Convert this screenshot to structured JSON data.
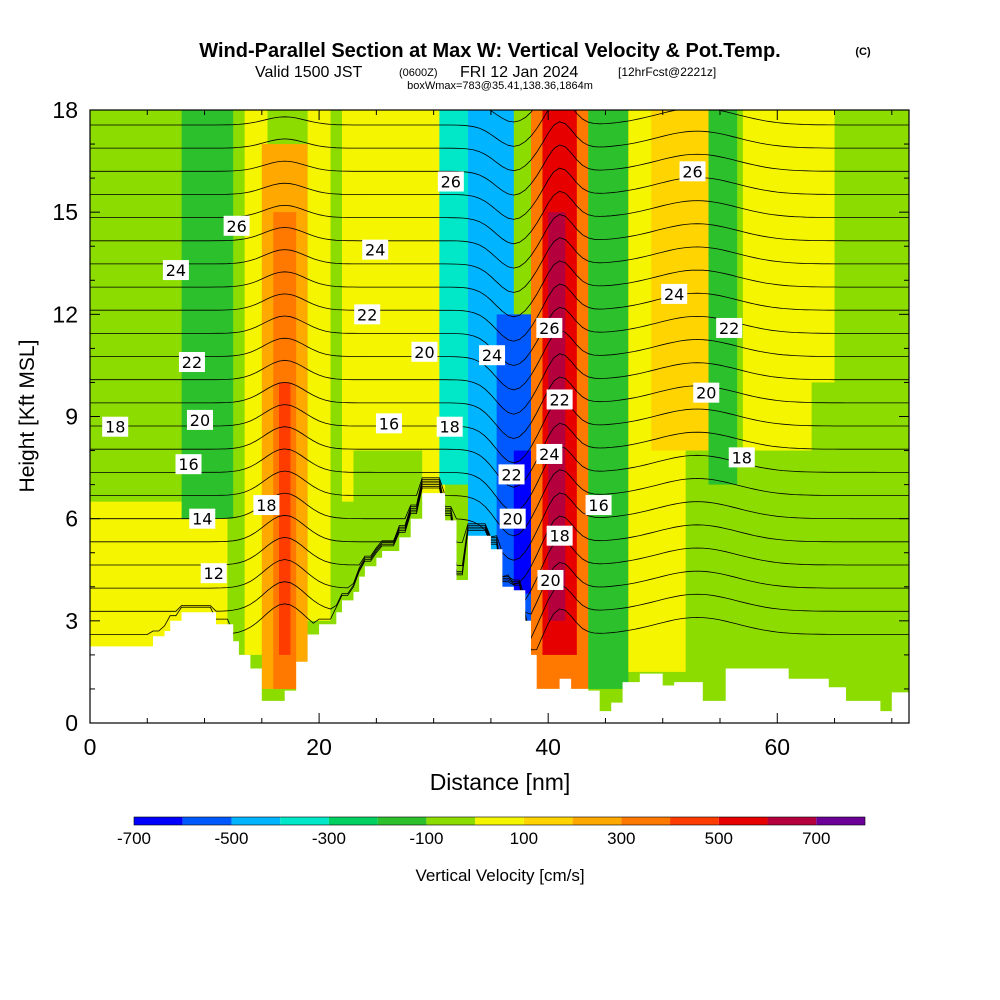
{
  "chart_data": {
    "type": "heatmap",
    "title": "Wind-Parallel Section at Max W: Vertical Velocity & Pot.Temp.",
    "title_mark": "(C)",
    "subtitle": {
      "valid": "Valid 1500 JST",
      "zulu": "(0600Z)",
      "date": "FRI 12 Jan 2024",
      "fcst": "[12hrFcst@2221z]",
      "box": "boxWmax=783@35.41,138.36,1864m"
    },
    "xlabel": "Distance [nm]",
    "ylabel": "Height [Kft MSL]",
    "xlim": [
      0,
      71.5
    ],
    "ylim": [
      0,
      18
    ],
    "x_ticks": [
      {
        "v": 0,
        "label": "0"
      },
      {
        "v": 20,
        "label": "20"
      },
      {
        "v": 40,
        "label": "40"
      },
      {
        "v": 60,
        "label": "60"
      }
    ],
    "y_ticks": [
      {
        "v": 0,
        "label": "0"
      },
      {
        "v": 3,
        "label": "3"
      },
      {
        "v": 6,
        "label": "6"
      },
      {
        "v": 9,
        "label": "9"
      },
      {
        "v": 12,
        "label": "12"
      },
      {
        "v": 15,
        "label": "15"
      },
      {
        "v": 18,
        "label": "18"
      }
    ],
    "terrain": [
      [
        0,
        2.25
      ],
      [
        5.5,
        2.25
      ],
      [
        5.5,
        2.55
      ],
      [
        6.5,
        2.55
      ],
      [
        6.5,
        2.7
      ],
      [
        7,
        2.7
      ],
      [
        7,
        3.0
      ],
      [
        8,
        3.0
      ],
      [
        8,
        3.25
      ],
      [
        11,
        3.25
      ],
      [
        11,
        2.9
      ],
      [
        12.5,
        2.9
      ],
      [
        12.5,
        2.4
      ],
      [
        13,
        2.4
      ],
      [
        13,
        2.0
      ],
      [
        14,
        2.0
      ],
      [
        14,
        1.6
      ],
      [
        15,
        1.6
      ],
      [
        15,
        0.65
      ],
      [
        17,
        0.65
      ],
      [
        17,
        0.95
      ],
      [
        18,
        0.95
      ],
      [
        18,
        1.8
      ],
      [
        19,
        1.8
      ],
      [
        19,
        2.6
      ],
      [
        20,
        2.6
      ],
      [
        20,
        2.9
      ],
      [
        21.5,
        2.9
      ],
      [
        21.5,
        3.25
      ],
      [
        22,
        3.25
      ],
      [
        22,
        3.6
      ],
      [
        23,
        3.6
      ],
      [
        23,
        3.85
      ],
      [
        23.5,
        3.85
      ],
      [
        23.5,
        4.3
      ],
      [
        24,
        4.3
      ],
      [
        24,
        4.6
      ],
      [
        25,
        4.6
      ],
      [
        25,
        4.85
      ],
      [
        25.5,
        4.85
      ],
      [
        25.5,
        5.05
      ],
      [
        27,
        5.05
      ],
      [
        27,
        5.45
      ],
      [
        28,
        5.45
      ],
      [
        28,
        6.0
      ],
      [
        29,
        6.0
      ],
      [
        29,
        6.75
      ],
      [
        31,
        6.75
      ],
      [
        31,
        5.95
      ],
      [
        32,
        5.95
      ],
      [
        32,
        4.2
      ],
      [
        33,
        4.2
      ],
      [
        33,
        5.5
      ],
      [
        35,
        5.5
      ],
      [
        35,
        5.1
      ],
      [
        36,
        5.1
      ],
      [
        36,
        4.0
      ],
      [
        37,
        4.0
      ],
      [
        37,
        3.9
      ],
      [
        38,
        3.9
      ],
      [
        38,
        3.0
      ],
      [
        38.5,
        3.0
      ],
      [
        38.5,
        2.0
      ],
      [
        39,
        2.0
      ],
      [
        39,
        1.0
      ],
      [
        41,
        1.0
      ],
      [
        41,
        1.3
      ],
      [
        42,
        1.3
      ],
      [
        42,
        1.0
      ],
      [
        43.5,
        1.0
      ],
      [
        43.5,
        0.95
      ],
      [
        44.5,
        0.95
      ],
      [
        44.5,
        0.35
      ],
      [
        45.5,
        0.35
      ],
      [
        45.5,
        0.6
      ],
      [
        46.5,
        0.6
      ],
      [
        46.5,
        1.2
      ],
      [
        48,
        1.2
      ],
      [
        48,
        1.45
      ],
      [
        50,
        1.45
      ],
      [
        50,
        1.1
      ],
      [
        51,
        1.1
      ],
      [
        51,
        1.2
      ],
      [
        53.5,
        1.2
      ],
      [
        53.5,
        0.65
      ],
      [
        55.5,
        0.65
      ],
      [
        55.5,
        1.6
      ],
      [
        61,
        1.6
      ],
      [
        61,
        1.3
      ],
      [
        64.5,
        1.3
      ],
      [
        64.5,
        1.05
      ],
      [
        66,
        1.05
      ],
      [
        66,
        0.65
      ],
      [
        69,
        0.65
      ],
      [
        69,
        0.35
      ],
      [
        70,
        0.35
      ],
      [
        70,
        0.9
      ],
      [
        71.5,
        0.9
      ]
    ],
    "velocity_bands": [
      {
        "x0": 0,
        "x1": 71.5,
        "y0": 0,
        "y1": 18,
        "value": -50
      },
      {
        "x0": 0,
        "x1": 12,
        "y0": 2,
        "y1": 6.5,
        "value": 50
      },
      {
        "x0": 8,
        "x1": 12.5,
        "y0": 6,
        "y1": 18,
        "value": -150
      },
      {
        "x0": 13.5,
        "x1": 15.5,
        "y0": 2,
        "y1": 18,
        "value": 75
      },
      {
        "x0": 15,
        "x1": 19,
        "y0": 1,
        "y1": 17,
        "value": 250
      },
      {
        "x0": 16,
        "x1": 18,
        "y0": 1,
        "y1": 15,
        "value": 350
      },
      {
        "x0": 16.5,
        "x1": 17.5,
        "y0": 2,
        "y1": 10,
        "value": 450
      },
      {
        "x0": 19,
        "x1": 21,
        "y0": 3,
        "y1": 18,
        "value": 75
      },
      {
        "x0": 22,
        "x1": 31,
        "y0": 6.5,
        "y1": 18,
        "value": 50
      },
      {
        "x0": 23,
        "x1": 29,
        "y0": 3,
        "y1": 8,
        "value": -50
      },
      {
        "x0": 30.5,
        "x1": 34,
        "y0": 7,
        "y1": 18,
        "value": -350
      },
      {
        "x0": 33,
        "x1": 37,
        "y0": 5,
        "y1": 18,
        "value": -450
      },
      {
        "x0": 35.5,
        "x1": 38.5,
        "y0": 3,
        "y1": 12,
        "value": -550
      },
      {
        "x0": 37,
        "x1": 38.5,
        "y0": 3.8,
        "y1": 8,
        "value": -650
      },
      {
        "x0": 38.5,
        "x1": 43.5,
        "y0": 1,
        "y1": 18,
        "value": 350
      },
      {
        "x0": 39.5,
        "x1": 42.5,
        "y0": 2,
        "y1": 18,
        "value": 550
      },
      {
        "x0": 40,
        "x1": 41.5,
        "y0": 3,
        "y1": 15,
        "value": 650
      },
      {
        "x0": 43.5,
        "x1": 47,
        "y0": 1,
        "y1": 18,
        "value": -150
      },
      {
        "x0": 47,
        "x1": 52,
        "y0": 1.5,
        "y1": 18,
        "value": 50
      },
      {
        "x0": 49,
        "x1": 54,
        "y0": 8,
        "y1": 18,
        "value": 150
      },
      {
        "x0": 54,
        "x1": 56.5,
        "y0": 7,
        "y1": 18,
        "value": -150
      },
      {
        "x0": 57,
        "x1": 65,
        "y0": 8,
        "y1": 18,
        "value": 50
      },
      {
        "x0": 63,
        "x1": 71.5,
        "y0": 1,
        "y1": 10,
        "value": -50
      }
    ],
    "contour_labels": [
      {
        "x": 2.2,
        "y": 8.7,
        "text": "18"
      },
      {
        "x": 12.8,
        "y": 14.6,
        "text": "26"
      },
      {
        "x": 7.5,
        "y": 13.3,
        "text": "24"
      },
      {
        "x": 8.9,
        "y": 10.6,
        "text": "22"
      },
      {
        "x": 9.6,
        "y": 8.9,
        "text": "20"
      },
      {
        "x": 8.6,
        "y": 7.6,
        "text": "16"
      },
      {
        "x": 9.8,
        "y": 6.0,
        "text": "14"
      },
      {
        "x": 10.8,
        "y": 4.4,
        "text": "12"
      },
      {
        "x": 15.4,
        "y": 6.4,
        "text": "18"
      },
      {
        "x": 24.9,
        "y": 13.9,
        "text": "24"
      },
      {
        "x": 24.2,
        "y": 12.0,
        "text": "22"
      },
      {
        "x": 29.2,
        "y": 10.9,
        "text": "20"
      },
      {
        "x": 26.1,
        "y": 8.8,
        "text": "16"
      },
      {
        "x": 31.4,
        "y": 8.7,
        "text": "18"
      },
      {
        "x": 31.5,
        "y": 15.9,
        "text": "26"
      },
      {
        "x": 35.1,
        "y": 10.8,
        "text": "24"
      },
      {
        "x": 36.8,
        "y": 7.3,
        "text": "22"
      },
      {
        "x": 36.9,
        "y": 6.0,
        "text": "20"
      },
      {
        "x": 40.1,
        "y": 11.6,
        "text": "26"
      },
      {
        "x": 41.0,
        "y": 9.5,
        "text": "22"
      },
      {
        "x": 40.1,
        "y": 7.9,
        "text": "24"
      },
      {
        "x": 41.0,
        "y": 5.5,
        "text": "18"
      },
      {
        "x": 40.2,
        "y": 4.2,
        "text": "20"
      },
      {
        "x": 44.4,
        "y": 6.4,
        "text": "16"
      },
      {
        "x": 52.6,
        "y": 16.2,
        "text": "26"
      },
      {
        "x": 51.0,
        "y": 12.6,
        "text": "24"
      },
      {
        "x": 55.8,
        "y": 11.6,
        "text": "22"
      },
      {
        "x": 53.8,
        "y": 9.7,
        "text": "20"
      },
      {
        "x": 56.9,
        "y": 7.8,
        "text": "18"
      }
    ],
    "colorbar": {
      "label": "Vertical Velocity [cm/s]",
      "steps": [
        {
          "min": -700,
          "max": -600,
          "color": "#0000ff"
        },
        {
          "min": -600,
          "max": -500,
          "color": "#0059ff"
        },
        {
          "min": -500,
          "max": -400,
          "color": "#00b4ff"
        },
        {
          "min": -400,
          "max": -300,
          "color": "#00e8c8"
        },
        {
          "min": -300,
          "max": -200,
          "color": "#00d060"
        },
        {
          "min": -200,
          "max": -100,
          "color": "#2cc02c"
        },
        {
          "min": -100,
          "max": 0,
          "color": "#8cdc00"
        },
        {
          "min": 0,
          "max": 100,
          "color": "#f5f500"
        },
        {
          "min": 100,
          "max": 200,
          "color": "#ffd400"
        },
        {
          "min": 200,
          "max": 300,
          "color": "#ffa800"
        },
        {
          "min": 300,
          "max": 400,
          "color": "#ff7800"
        },
        {
          "min": 400,
          "max": 500,
          "color": "#ff3c00"
        },
        {
          "min": 500,
          "max": 600,
          "color": "#e60000"
        },
        {
          "min": 600,
          "max": 700,
          "color": "#b4003c"
        },
        {
          "min": 700,
          "max": 800,
          "color": "#6a0096"
        }
      ],
      "tick_labels": [
        {
          "v": -700,
          "label": "-700"
        },
        {
          "v": -500,
          "label": "-500"
        },
        {
          "v": -300,
          "label": "-300"
        },
        {
          "v": -100,
          "label": "-100"
        },
        {
          "v": 100,
          "label": "100"
        },
        {
          "v": 300,
          "label": "300"
        },
        {
          "v": 500,
          "label": "500"
        },
        {
          "v": 700,
          "label": "700"
        }
      ]
    }
  }
}
